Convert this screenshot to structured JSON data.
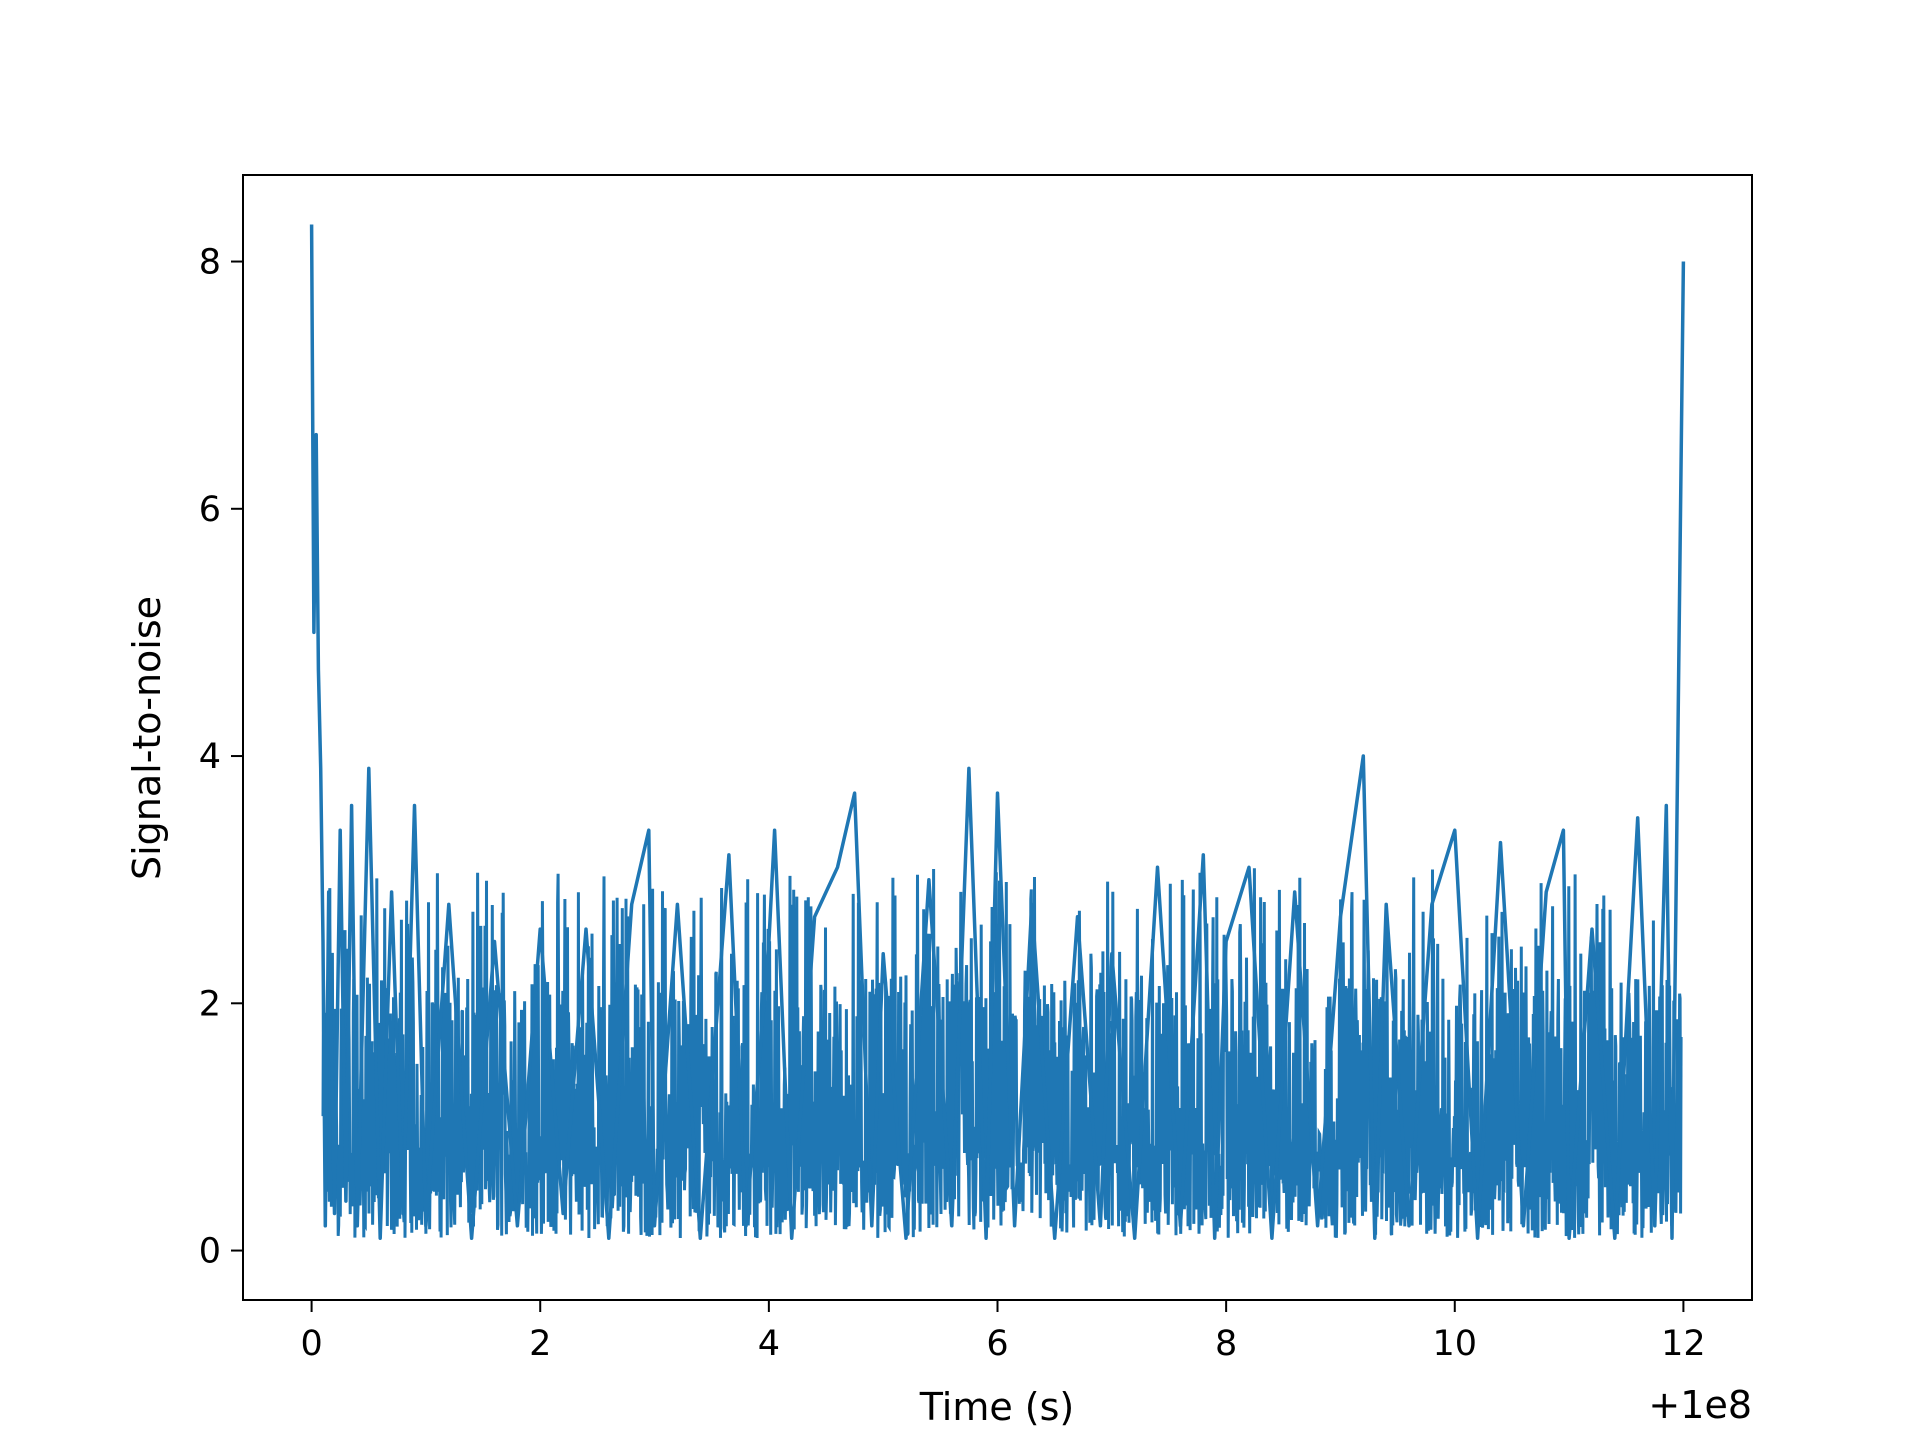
{
  "chart_data": {
    "type": "line",
    "title": "",
    "xlabel": "Time (s)",
    "ylabel": "Signal-to-noise",
    "x_offset_label": "+1e8",
    "xlim": [
      -0.6,
      12.6
    ],
    "ylim": [
      -0.4,
      8.7
    ],
    "x_ticks": [
      0,
      2,
      4,
      6,
      8,
      10,
      12
    ],
    "y_ticks": [
      0,
      2,
      4,
      6,
      8
    ],
    "x_tick_labels": [
      "0",
      "2",
      "4",
      "6",
      "8",
      "10",
      "12"
    ],
    "y_tick_labels": [
      "0",
      "2",
      "4",
      "6",
      "8"
    ],
    "grid": false,
    "line_color": "#1f77b4",
    "series": [
      {
        "x": [
          0.0,
          0.02,
          0.04,
          0.06,
          0.08,
          0.1,
          0.12,
          0.15,
          0.2,
          0.25,
          0.3,
          0.35,
          0.4,
          0.5,
          0.6,
          0.7,
          0.8,
          0.9,
          1.0,
          1.2,
          1.4,
          1.6,
          1.8,
          2.0,
          2.2,
          2.4,
          2.6,
          2.8,
          2.95,
          3.0,
          3.2,
          3.4,
          3.65,
          3.8,
          4.0,
          4.05,
          4.2,
          4.4,
          4.6,
          4.75,
          4.9,
          5.0,
          5.2,
          5.4,
          5.6,
          5.75,
          5.9,
          6.0,
          6.15,
          6.3,
          6.5,
          6.7,
          6.9,
          7.0,
          7.2,
          7.4,
          7.6,
          7.8,
          7.9,
          8.0,
          8.2,
          8.4,
          8.6,
          8.8,
          9.0,
          9.2,
          9.3,
          9.4,
          9.6,
          9.8,
          10.0,
          10.2,
          10.4,
          10.6,
          10.8,
          10.95,
          11.0,
          11.2,
          11.4,
          11.6,
          11.75,
          11.85,
          11.9,
          11.95,
          12.0
        ],
        "y": [
          8.3,
          5.0,
          6.6,
          4.7,
          3.9,
          2.5,
          0.2,
          2.9,
          0.3,
          3.4,
          0.4,
          3.6,
          0.2,
          3.9,
          0.1,
          2.9,
          0.3,
          3.6,
          0.2,
          2.8,
          0.1,
          2.5,
          0.2,
          2.6,
          0.3,
          2.6,
          0.1,
          2.8,
          3.4,
          0.2,
          2.8,
          0.1,
          3.2,
          0.2,
          2.5,
          3.4,
          0.1,
          2.7,
          3.1,
          3.7,
          0.2,
          2.4,
          0.1,
          3.0,
          0.2,
          3.9,
          0.1,
          3.7,
          0.2,
          2.8,
          0.1,
          2.7,
          0.2,
          2.4,
          0.1,
          3.1,
          0.2,
          3.2,
          0.1,
          2.5,
          3.1,
          0.1,
          2.9,
          0.2,
          2.7,
          4.0,
          0.1,
          2.8,
          0.2,
          2.8,
          3.4,
          0.1,
          3.3,
          0.2,
          2.9,
          3.4,
          0.1,
          2.6,
          0.1,
          3.5,
          0.2,
          3.6,
          0.1,
          4.0,
          8.0
        ]
      }
    ]
  }
}
